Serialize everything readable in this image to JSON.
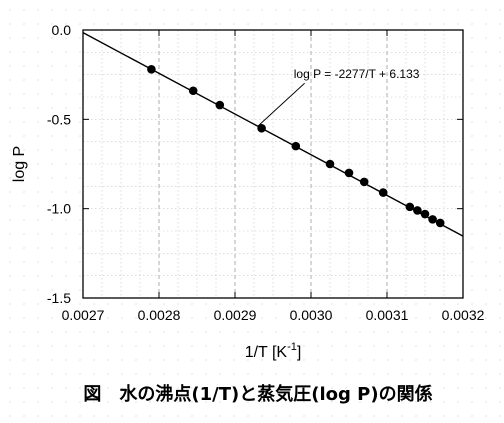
{
  "chart_data": {
    "type": "scatter",
    "title": "",
    "caption": "図　水の沸点(1/T)と蒸気圧(log P)の関係",
    "xlabel": "1/T [K",
    "xlabel_sup": "-1",
    "xlabel_suffix": "]",
    "ylabel": "log P",
    "xlim": [
      0.0027,
      0.0032
    ],
    "ylim": [
      -1.5,
      0.0
    ],
    "x_ticks": [
      0.0027,
      0.0028,
      0.0029,
      0.003,
      0.0031,
      0.0032
    ],
    "x_tick_labels": [
      "0.0027",
      "0.0028",
      "0.0029",
      "0.0030",
      "0.0031",
      "0.0032"
    ],
    "y_ticks": [
      0.0,
      -0.5,
      -1.0,
      -1.5
    ],
    "y_tick_labels": [
      "0.0",
      "-0.5",
      "-1.0",
      "-1.5"
    ],
    "grid": true,
    "series": [
      {
        "x": [
          0.00279,
          0.002845,
          0.00288,
          0.002935,
          0.00298,
          0.003025,
          0.00305,
          0.00307,
          0.003095,
          0.00313,
          0.00314,
          0.00315,
          0.00316,
          0.00317
        ],
        "y": [
          -0.22,
          -0.34,
          -0.42,
          -0.55,
          -0.65,
          -0.75,
          -0.8,
          -0.85,
          -0.91,
          -0.99,
          -1.01,
          -1.03,
          -1.06,
          -1.08
        ]
      }
    ],
    "fit_line": {
      "slope": -2277,
      "intercept": 6.133,
      "x_range": [
        0.0027,
        0.0032
      ]
    },
    "annotation": {
      "text": "log P = -2277/T + 6.133",
      "x": 0.00306,
      "y": -0.27,
      "arrow_to_x": 0.00293
    }
  }
}
